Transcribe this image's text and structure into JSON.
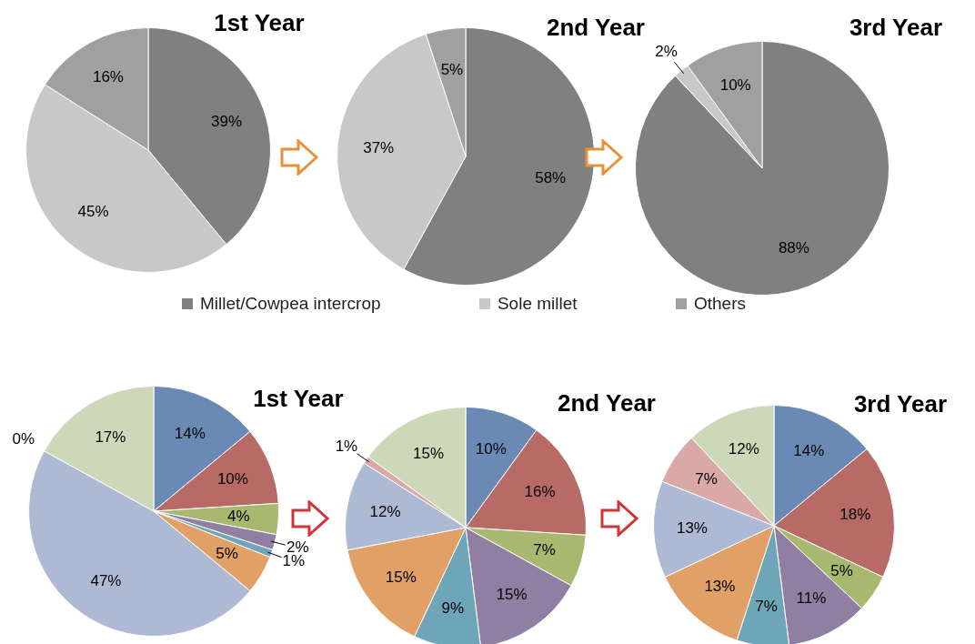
{
  "chart_data": [
    {
      "type": "pie",
      "title": "1st Year",
      "categories": [
        null,
        null,
        null
      ],
      "values": [
        39,
        45,
        16
      ],
      "value_labels": [
        "39%",
        "45%",
        "16%"
      ],
      "colors": [
        "#808080",
        "#c8c8c8",
        "#a0a0a0"
      ]
    },
    {
      "type": "pie",
      "title": "2nd Year",
      "categories": [
        "Millet/Cowpea intercrop",
        "Sole millet",
        "Others"
      ],
      "values": [
        58,
        37,
        5
      ],
      "value_labels": [
        "58%",
        "37%",
        "5%"
      ],
      "colors": [
        "#808080",
        "#c8c8c8",
        "#a0a0a0"
      ],
      "legend": "bottom"
    },
    {
      "type": "pie",
      "title": "3rd Year",
      "categories": [
        null,
        null,
        null
      ],
      "values": [
        88,
        2,
        10
      ],
      "value_labels": [
        "88%",
        "2%",
        "10%"
      ],
      "colors": [
        "#808080",
        "#c8c8c8",
        "#a0a0a0"
      ]
    },
    {
      "type": "pie",
      "title": "1st Year",
      "categories": [
        null,
        null,
        null,
        null,
        null,
        null,
        null,
        null,
        null
      ],
      "values": [
        14,
        10,
        4,
        2,
        1,
        5,
        47,
        0,
        17
      ],
      "value_labels": [
        "14%",
        "10%",
        "4%",
        "2%",
        "1%",
        "5%",
        "47%",
        "0%",
        "17%"
      ],
      "colors": [
        "#6a8ab5",
        "#b86b66",
        "#a8b96f",
        "#917ea3",
        "#6ea5b8",
        "#e0a066",
        "#aebad4",
        "#d9a9a8",
        "#cdd8b8"
      ]
    },
    {
      "type": "pie",
      "title": "2nd Year",
      "categories": [
        null,
        null,
        null,
        null,
        null,
        null,
        null,
        null,
        null
      ],
      "values": [
        10,
        16,
        7,
        15,
        9,
        15,
        12,
        1,
        15
      ],
      "value_labels": [
        "10%",
        "16%",
        "7%",
        "15%",
        "9%",
        "15%",
        "12%",
        "1%",
        "15%"
      ],
      "colors": [
        "#6a8ab5",
        "#b86b66",
        "#a8b96f",
        "#917ea3",
        "#6ea5b8",
        "#e0a066",
        "#aebad4",
        "#d9a9a8",
        "#cdd8b8"
      ]
    },
    {
      "type": "pie",
      "title": "3rd Year",
      "categories": [
        null,
        null,
        null,
        null,
        null,
        null,
        null,
        null,
        null
      ],
      "values": [
        14,
        18,
        5,
        11,
        7,
        13,
        13,
        7,
        12
      ],
      "value_labels": [
        "14%",
        "18%",
        "5%",
        "11%",
        "7%",
        "13%",
        "13%",
        "7%",
        "12%"
      ],
      "colors": [
        "#6a8ab5",
        "#b86b66",
        "#a8b96f",
        "#917ea3",
        "#6ea5b8",
        "#e0a066",
        "#aebad4",
        "#d9a9a8",
        "#cdd8b8"
      ]
    }
  ]
}
